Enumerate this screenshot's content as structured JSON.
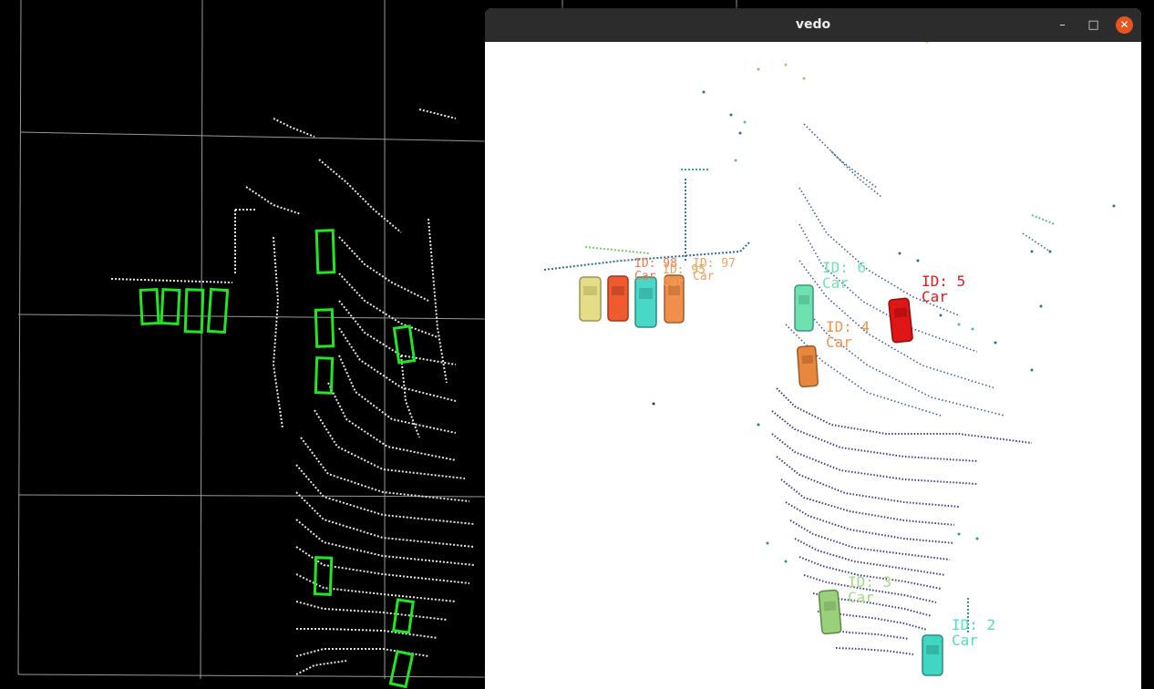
{
  "window": {
    "title": "vedo",
    "minimize_glyph": "–",
    "maximize_glyph": "□",
    "close_glyph": "✕",
    "close_color": "#e9541e"
  },
  "left_viewer": {
    "background": "#000000",
    "grid_color": "#9a9a9a",
    "box_color": "#22e622"
  },
  "detections": [
    {
      "id_text": "ID: 6",
      "class_text": "Car",
      "color": "#6fe3b2"
    },
    {
      "id_text": "ID: 5",
      "class_text": "Car",
      "color": "#e3191c"
    },
    {
      "id_text": "ID: 4",
      "class_text": "Car",
      "color": "#f3954a"
    },
    {
      "id_text": "ID: 97",
      "class_text": "Car",
      "color": "#f0a060"
    },
    {
      "id_text": "ID: 98",
      "class_text": "Car",
      "color": "#f07846"
    },
    {
      "id_text": "ID: 95",
      "class_text": "Car",
      "color": "#eaa360"
    },
    {
      "id_text": "ID: 3",
      "class_text": "Car",
      "color": "#a5d884"
    },
    {
      "id_text": "ID: 2",
      "class_text": "Car",
      "color": "#4fe0c0"
    }
  ],
  "vehicle_colors": {
    "yellow": "#e2dd86",
    "red_orange": "#ef5a2e",
    "cyan": "#48d8c8",
    "orange": "#ef8f4a",
    "mint": "#6fe0b0",
    "orange2": "#e8883e",
    "red": "#e01515",
    "green": "#9ad07a",
    "teal": "#3fd6c2"
  }
}
